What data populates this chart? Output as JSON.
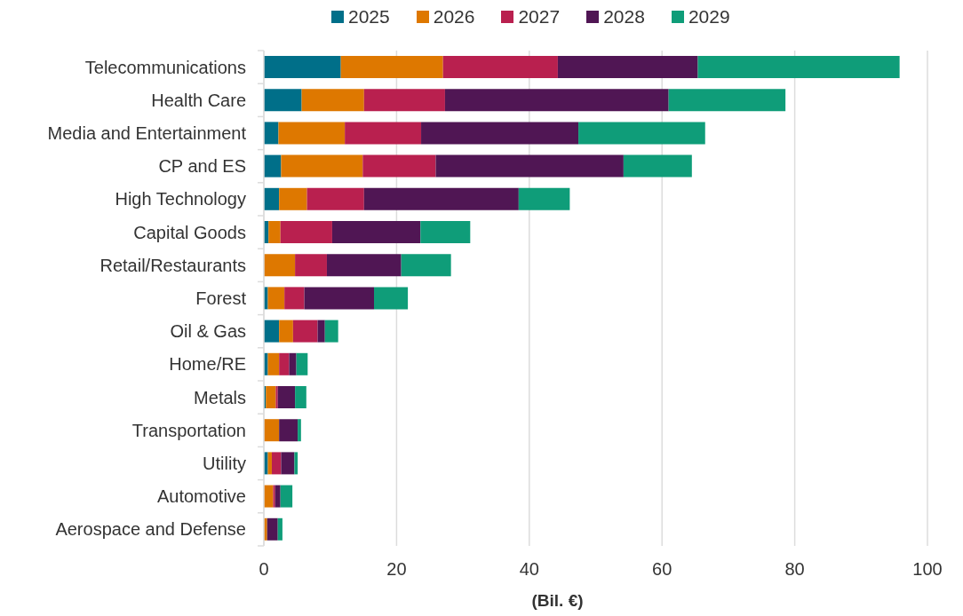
{
  "chart_data": {
    "type": "bar",
    "orientation": "horizontal",
    "stacked": true,
    "xlabel": "(Bil. €)",
    "categories": [
      "Telecommunications",
      "Health Care",
      "Media and Entertainment",
      "CP and ES",
      "High Technology",
      "Capital Goods",
      "Retail/Restaurants",
      "Forest",
      "Oil & Gas",
      "Home/RE",
      "Metals",
      "Transportation",
      "Utility",
      "Automotive",
      "Aerospace and Defense"
    ],
    "series": [
      {
        "name": "2025",
        "color": "#006f89",
        "values": [
          11.6,
          5.7,
          2.2,
          2.6,
          2.3,
          0.7,
          0,
          0.6,
          2.3,
          0.6,
          0.3,
          0,
          0.6,
          0,
          0
        ]
      },
      {
        "name": "2026",
        "color": "#de7800",
        "values": [
          15.4,
          9.4,
          10.0,
          12.3,
          4.2,
          1.8,
          4.7,
          2.5,
          2.1,
          1.7,
          1.5,
          2.3,
          0.6,
          1.4,
          0.5
        ]
      },
      {
        "name": "2027",
        "color": "#b9204f",
        "values": [
          17.3,
          12.2,
          11.5,
          11.0,
          8.6,
          7.8,
          4.8,
          3.0,
          3.7,
          1.5,
          0.3,
          0,
          1.4,
          0.3,
          0
        ]
      },
      {
        "name": "2028",
        "color": "#501654",
        "values": [
          21.1,
          33.7,
          23.7,
          28.3,
          23.3,
          13.3,
          11.2,
          10.5,
          1.1,
          1.1,
          2.6,
          2.8,
          2.0,
          0.8,
          1.6
        ]
      },
      {
        "name": "2029",
        "color": "#0f9d79",
        "values": [
          30.4,
          17.6,
          19.1,
          10.3,
          7.7,
          7.5,
          7.5,
          5.1,
          2.0,
          1.7,
          1.7,
          0.5,
          0.5,
          1.8,
          0.7
        ]
      }
    ],
    "xlim": [
      0,
      100
    ],
    "xticks": [
      0,
      20,
      40,
      60,
      80,
      100
    ],
    "grid": "x",
    "legend": "top"
  }
}
